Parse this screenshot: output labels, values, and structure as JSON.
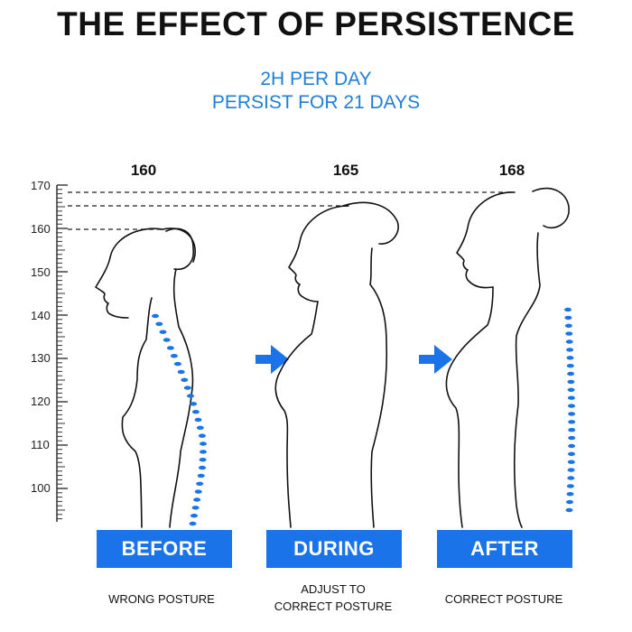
{
  "title": "THE EFFECT OF PERSISTENCE",
  "subtitle_line1": "2H PER DAY",
  "subtitle_line2": "PERSIST FOR 21 DAYS",
  "accent_color": "#1a73e8",
  "ruler": {
    "ticks": [
      "170",
      "160",
      "150",
      "140",
      "130",
      "120",
      "110",
      "100"
    ]
  },
  "figures": [
    {
      "height": "160",
      "stage": "BEFORE",
      "caption": [
        "WRONG POSTURE"
      ]
    },
    {
      "height": "165",
      "stage": "DURING",
      "caption": [
        "ADJUST TO",
        "CORRECT POSTURE"
      ]
    },
    {
      "height": "168",
      "stage": "AFTER",
      "caption": [
        "CORRECT POSTURE"
      ]
    }
  ],
  "icons": [
    "right-arrow-icon",
    "right-arrow-icon"
  ]
}
